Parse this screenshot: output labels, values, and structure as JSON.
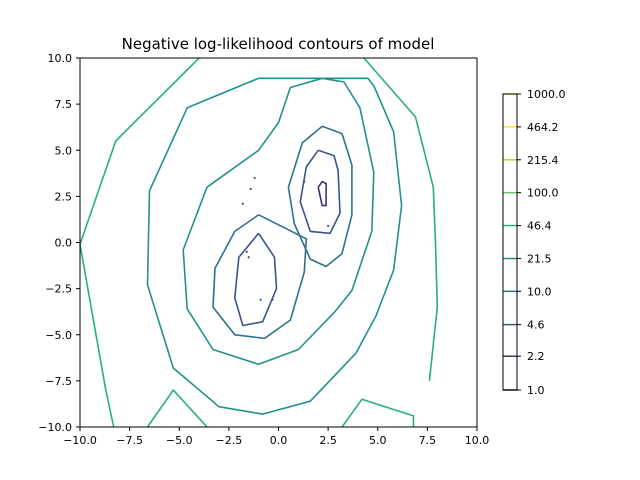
{
  "chart_data": {
    "type": "contour",
    "title": "Negative log-likelihood contours of model",
    "xlabel": "",
    "ylabel": "",
    "xlim": [
      -10,
      10
    ],
    "ylim": [
      -10,
      10
    ],
    "xticks": [
      "−10.0",
      "−7.5",
      "−5.0",
      "−2.5",
      "0.0",
      "2.5",
      "5.0",
      "7.5",
      "10.0"
    ],
    "yticks": [
      "−10.0",
      "−7.5",
      "−5.0",
      "−2.5",
      "0.0",
      "2.5",
      "5.0",
      "7.5",
      "10.0"
    ],
    "grid": false,
    "colorbar": {
      "scale": "log",
      "levels": [
        1.0,
        2.2,
        4.6,
        10.0,
        21.5,
        46.4,
        100.0,
        215.4,
        464.2,
        1000.0
      ],
      "labels": [
        "1.0",
        "2.2",
        "4.6",
        "10.0",
        "21.5",
        "46.4",
        "100.0",
        "215.4",
        "464.2",
        "1000.0"
      ],
      "colors": [
        "#440154",
        "#472d7b",
        "#3b528b",
        "#2c728e",
        "#21918c",
        "#28ae80",
        "#5ec962",
        "#addc30",
        "#fde725"
      ]
    },
    "contours": [
      {
        "level": 2.2,
        "color": "#472d7b",
        "paths": [
          [
            [
              2.0,
              3.0
            ],
            [
              2.2,
              2.0
            ],
            [
              2.4,
              2.0
            ],
            [
              2.4,
              3.2
            ],
            [
              2.2,
              3.3
            ],
            [
              2.0,
              3.0
            ]
          ]
        ]
      },
      {
        "level": 4.6,
        "color": "#3b528b",
        "paths": [
          [
            [
              -1.0,
              0.5
            ],
            [
              -2.0,
              -0.8
            ],
            [
              -2.2,
              -3.0
            ],
            [
              -1.8,
              -4.5
            ],
            [
              -0.8,
              -4.3
            ],
            [
              -0.1,
              -2.5
            ],
            [
              -0.2,
              -0.8
            ],
            [
              -1.0,
              0.5
            ]
          ],
          [
            [
              2.0,
              5.0
            ],
            [
              1.4,
              4.1
            ],
            [
              1.1,
              2.2
            ],
            [
              1.6,
              0.6
            ],
            [
              2.6,
              0.5
            ],
            [
              3.1,
              1.6
            ],
            [
              3.0,
              3.9
            ],
            [
              2.8,
              4.7
            ],
            [
              2.0,
              5.0
            ]
          ]
        ]
      },
      {
        "level": 10.0,
        "color": "#2c728e",
        "paths": [
          [
            [
              2.2,
              6.3
            ],
            [
              1.2,
              5.4
            ],
            [
              0.5,
              3.0
            ],
            [
              0.8,
              1.0
            ],
            [
              1.6,
              -0.9
            ],
            [
              2.4,
              -1.3
            ],
            [
              3.2,
              -0.6
            ],
            [
              3.7,
              1.5
            ],
            [
              3.7,
              4.2
            ],
            [
              3.2,
              5.9
            ],
            [
              2.2,
              6.3
            ]
          ],
          [
            [
              -1.0,
              1.5
            ],
            [
              -2.2,
              0.6
            ],
            [
              -3.2,
              -1.4
            ],
            [
              -3.3,
              -3.5
            ],
            [
              -2.2,
              -5.0
            ],
            [
              -0.7,
              -5.2
            ],
            [
              0.6,
              -4.2
            ],
            [
              1.3,
              -1.6
            ],
            [
              1.4,
              0.2
            ],
            [
              -1.0,
              1.5
            ]
          ]
        ]
      },
      {
        "level": 21.5,
        "color": "#21918c",
        "paths": [
          [
            [
              2.2,
              8.9
            ],
            [
              0.6,
              8.4
            ],
            [
              0.0,
              6.5
            ],
            [
              -1.0,
              5.0
            ],
            [
              -3.6,
              3.0
            ],
            [
              -4.8,
              -0.4
            ],
            [
              -4.6,
              -3.6
            ],
            [
              -3.3,
              -5.8
            ],
            [
              -1.0,
              -6.6
            ],
            [
              1.0,
              -5.8
            ],
            [
              2.8,
              -3.8
            ],
            [
              3.7,
              -2.6
            ],
            [
              4.7,
              0.6
            ],
            [
              4.8,
              3.8
            ],
            [
              4.1,
              7.3
            ],
            [
              3.3,
              8.7
            ],
            [
              2.2,
              8.9
            ]
          ]
        ]
      },
      {
        "level": 46.4,
        "color": "#21918c",
        "paths": [
          [
            [
              -1.0,
              8.9
            ],
            [
              -4.6,
              7.3
            ],
            [
              -6.5,
              2.8
            ],
            [
              -6.6,
              -2.3
            ],
            [
              -5.3,
              -6.8
            ],
            [
              -3.0,
              -8.9
            ],
            [
              -0.8,
              -9.3
            ],
            [
              1.6,
              -8.6
            ],
            [
              3.9,
              -6.0
            ],
            [
              4.9,
              -4.0
            ],
            [
              5.8,
              -1.5
            ],
            [
              6.2,
              2.0
            ],
            [
              5.8,
              6.0
            ],
            [
              4.8,
              8.5
            ],
            [
              4.5,
              8.9
            ],
            [
              -1.0,
              8.9
            ]
          ]
        ]
      },
      {
        "level": 100.0,
        "color": "#28ae80",
        "paths": [
          [
            [
              -4.0,
              10.0
            ],
            [
              -8.2,
              5.5
            ],
            [
              -10.0,
              -0.1
            ],
            [
              -8.7,
              -8.0
            ],
            [
              -8.3,
              -10.0
            ]
          ],
          [
            [
              -6.6,
              -10.0
            ],
            [
              -5.3,
              -8.0
            ],
            [
              -3.6,
              -10.0
            ]
          ],
          [
            [
              3.2,
              -10.0
            ],
            [
              4.2,
              -8.5
            ],
            [
              6.8,
              -9.4
            ],
            [
              6.8,
              -10.0
            ]
          ],
          [
            [
              4.3,
              10.0
            ],
            [
              6.9,
              6.8
            ],
            [
              7.8,
              3.0
            ],
            [
              7.9,
              0.3
            ],
            [
              8.0,
              -3.5
            ],
            [
              7.6,
              -7.5
            ]
          ]
        ]
      }
    ],
    "points": [
      [
        -1.4,
        2.9
      ],
      [
        -1.8,
        2.1
      ],
      [
        -1.2,
        3.5
      ],
      [
        -1.6,
        -0.5
      ],
      [
        -1.5,
        -0.8
      ],
      [
        -0.9,
        -3.1
      ],
      [
        -0.3,
        -3.1
      ],
      [
        1.3,
        3.3
      ],
      [
        2.5,
        0.9
      ]
    ]
  }
}
